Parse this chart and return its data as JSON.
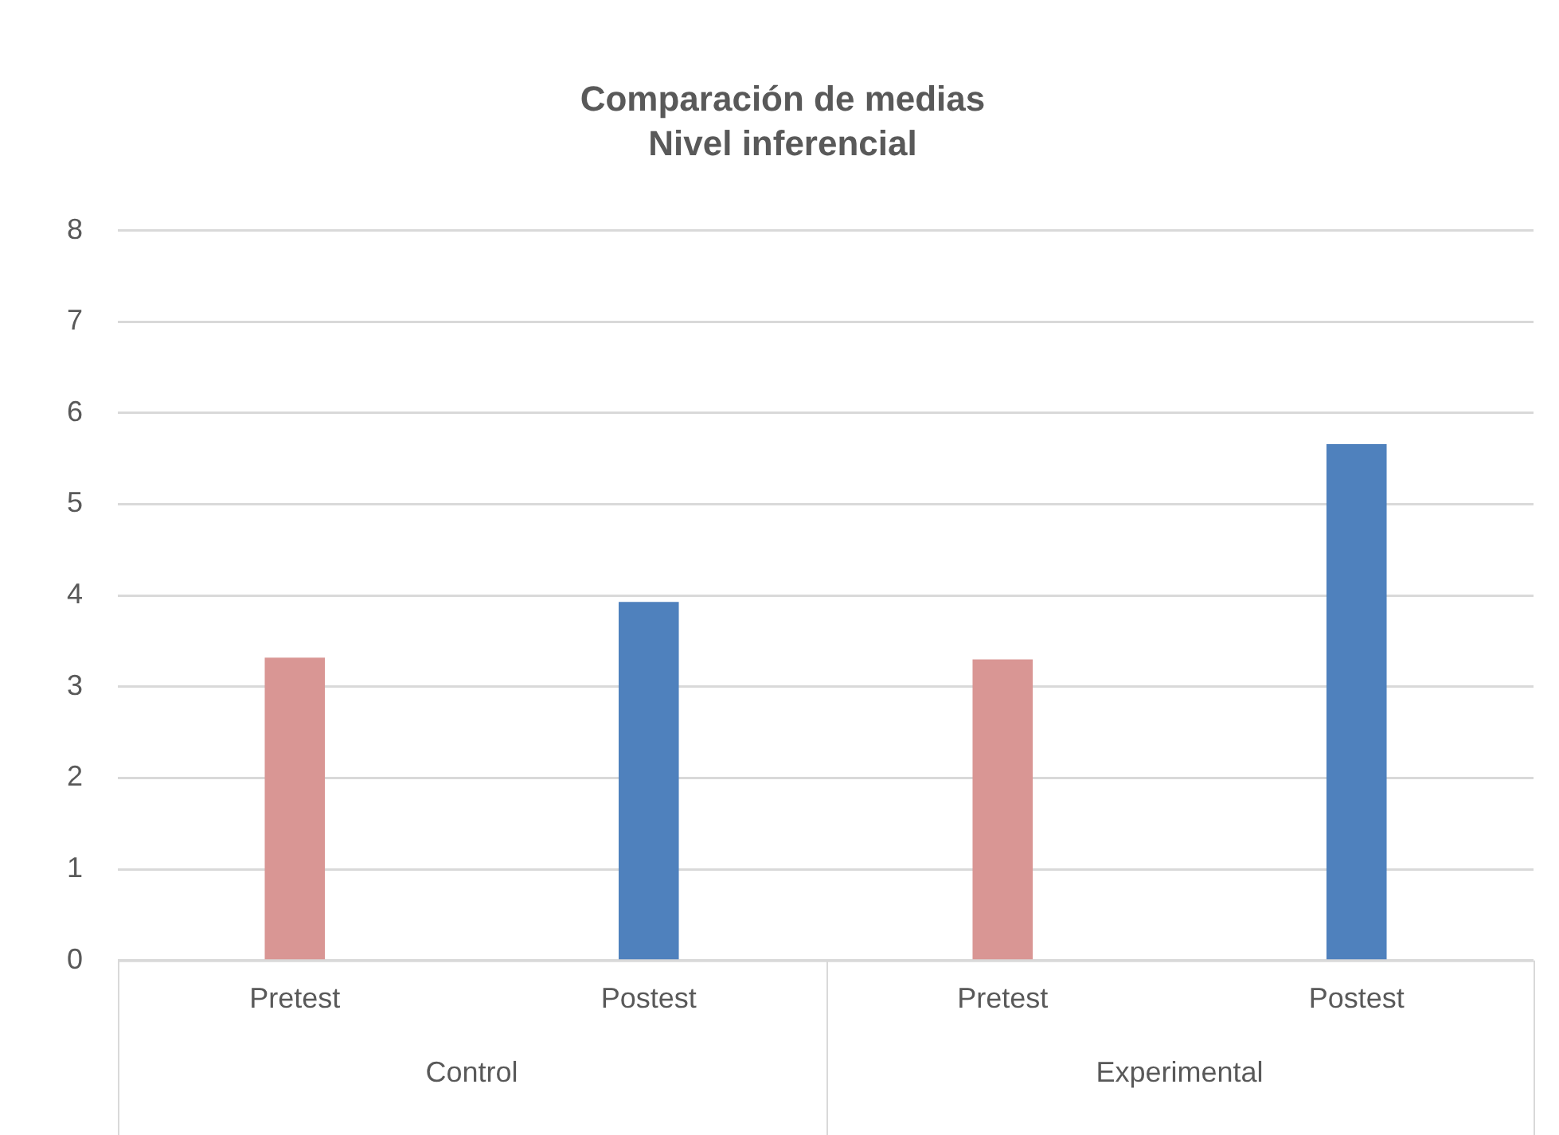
{
  "chart_data": {
    "type": "bar",
    "title": "Comparación de medias",
    "subtitle": "Nivel inferencial",
    "categories": [
      "Pretest",
      "Postest",
      "Pretest",
      "Postest"
    ],
    "values": [
      3.32,
      3.93,
      3.3,
      5.66
    ],
    "colors": [
      "#d99694",
      "#4f81bd",
      "#d99694",
      "#4f81bd"
    ],
    "ylim": [
      0,
      8
    ],
    "yticks": [
      0,
      1,
      2,
      3,
      4,
      5,
      6,
      7,
      8
    ],
    "grid": "y",
    "annotations": [
      "Control",
      "Experimental"
    ]
  }
}
